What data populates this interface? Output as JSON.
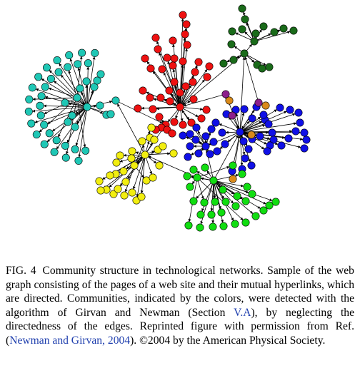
{
  "figure": {
    "communities": [
      {
        "name": "cyan",
        "color": "#1fc7b5"
      },
      {
        "name": "red",
        "color": "#ee1111"
      },
      {
        "name": "dark-green",
        "color": "#1a6b1a"
      },
      {
        "name": "yellow",
        "color": "#f2ee10"
      },
      {
        "name": "blue",
        "color": "#1010e6"
      },
      {
        "name": "green",
        "color": "#11dd11"
      },
      {
        "name": "purple",
        "color": "#8c1f8c"
      },
      {
        "name": "orange",
        "color": "#d98a1a"
      }
    ],
    "edge_color": "#000000",
    "node_outline": "#000000"
  },
  "caption": {
    "label": "FIG. 4",
    "text_1": "Community structure in technological networks. Sample of the web graph consisting of the pages of a web site and their mutual hyperlinks, which are directed. Communities, indicated by the colors, were detected with the algorithm of Girvan and Newman (Section ",
    "section_link": "V.A",
    "text_2": "), by neglecting the directedness of the edges. Reprinted figure with permission from Ref. (",
    "ref_link": "Newman and Girvan, 2004",
    "text_3": "). ©2004 by the American Physical Society."
  }
}
